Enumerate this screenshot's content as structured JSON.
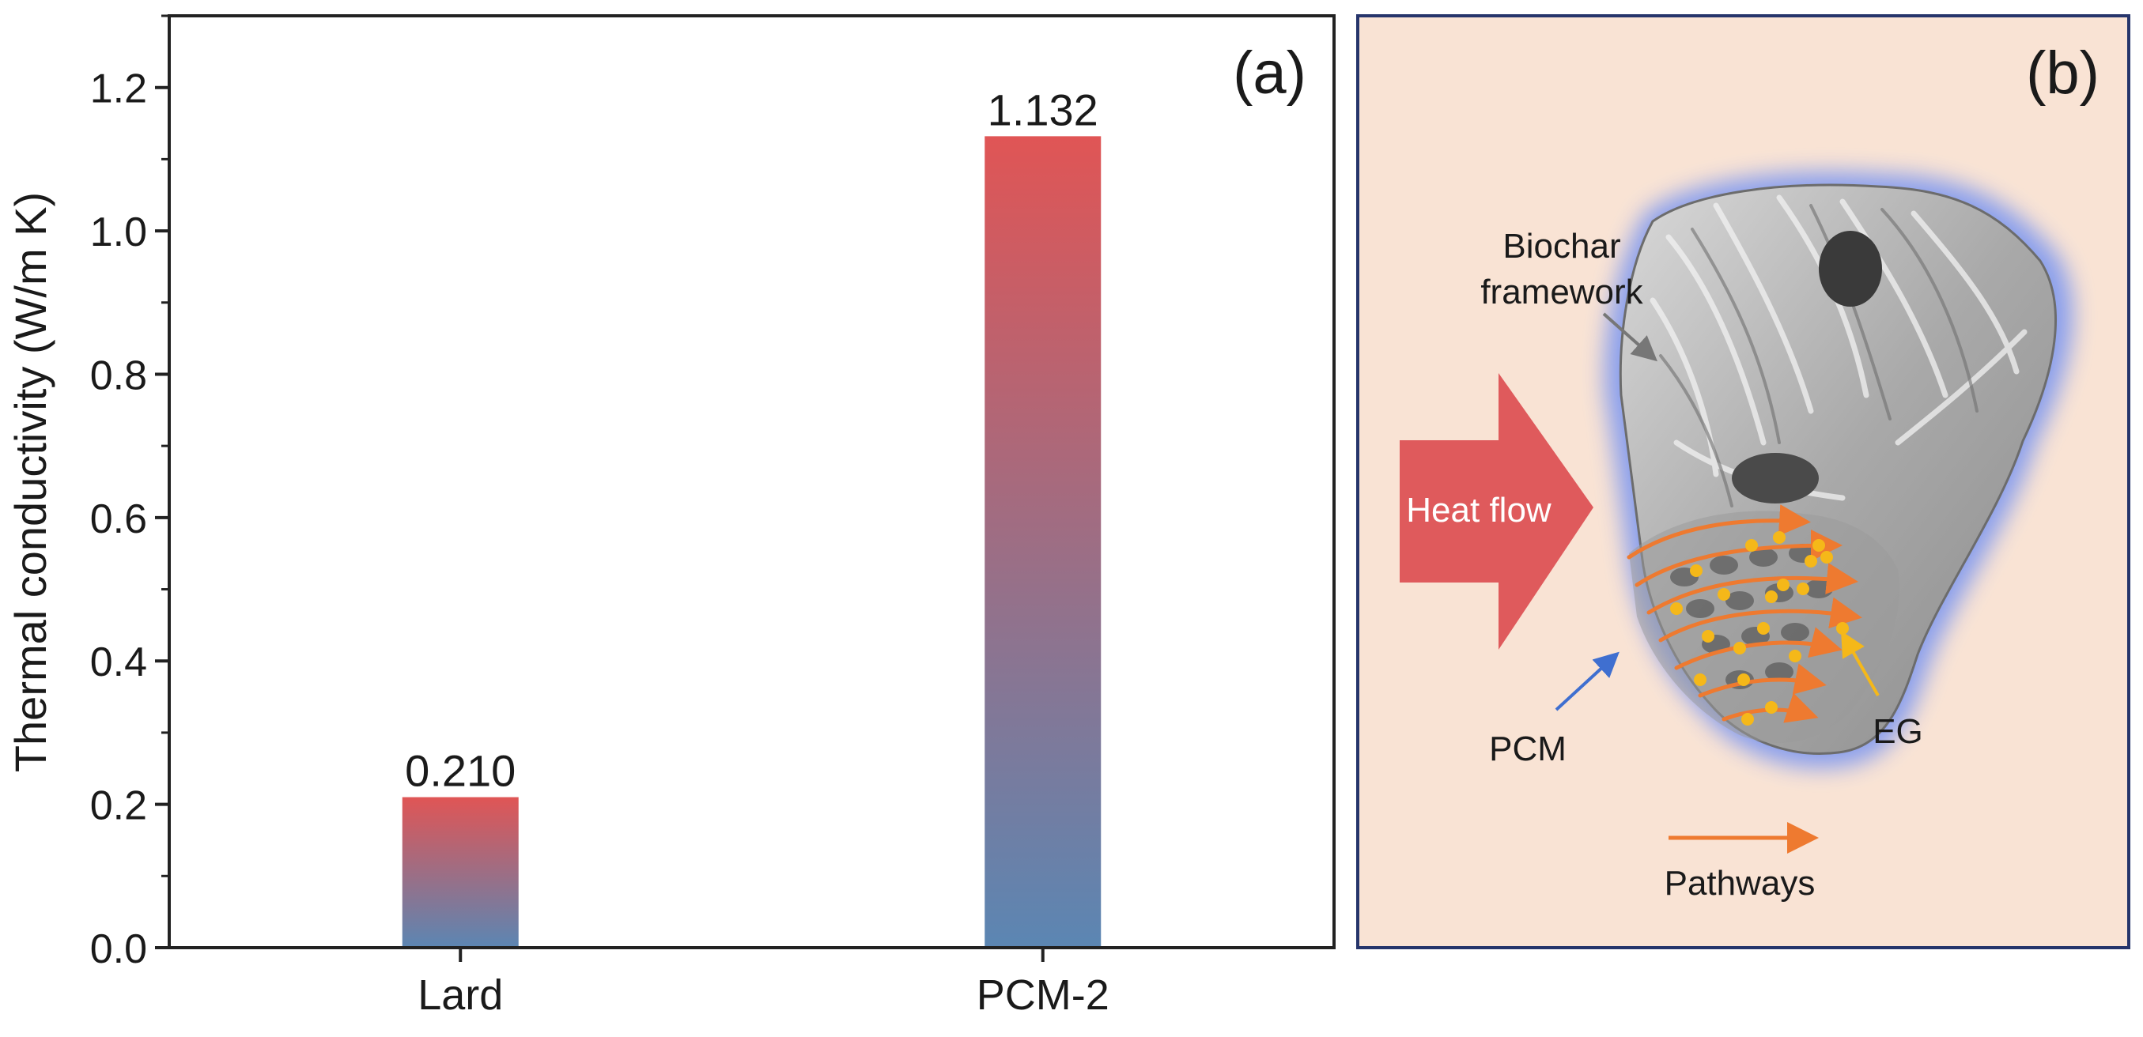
{
  "chart_data": {
    "type": "bar",
    "panel_label": "(a)",
    "categories": [
      "Lard",
      "PCM-2"
    ],
    "values": [
      0.21,
      1.132
    ],
    "data_labels": [
      "0.210",
      "1.132"
    ],
    "ylabel": "Thermal conductivity (W/m K)",
    "xlabel": "",
    "ylim": [
      0,
      1.3
    ],
    "yticks": [
      0.0,
      0.2,
      0.4,
      0.6,
      0.8,
      1.0,
      1.2
    ],
    "ytick_labels": [
      "0.0",
      "0.2",
      "0.4",
      "0.6",
      "0.8",
      "1.0",
      "1.2"
    ],
    "grid": false,
    "bar_gradient": {
      "top": "#e05555",
      "bottom": "#5b86b3"
    }
  },
  "schematic": {
    "panel_label": "(b)",
    "background": "#f9e3d4",
    "heat_flow_label": "Heat flow",
    "heat_flow_color": "#df5a5c",
    "biochar_label_line1": "Biochar",
    "biochar_label_line2": "framework",
    "pcm_label": "PCM",
    "eg_label": "EG",
    "pathways_label": "Pathways",
    "pathway_color": "#ee7a30",
    "eg_color": "#f5b819",
    "glow_color": "#8aa2ee"
  }
}
